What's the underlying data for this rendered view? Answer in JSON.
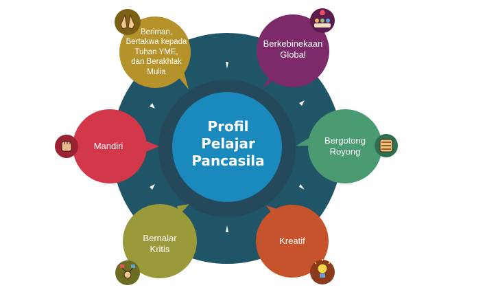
{
  "center": {
    "lines": [
      "Profil",
      "Pelajar",
      "Pancasila"
    ]
  },
  "elements": [
    {
      "id": "beriman",
      "lines": [
        "Beriman,",
        "Bertakwa kepada",
        "Tuhan YME,",
        "dan Berakhlak",
        "Mulia"
      ],
      "color": "#b6922a",
      "icon": "praying-hands-icon"
    },
    {
      "id": "berkebinekaan",
      "lines": [
        "Berkebinekaan",
        "Global"
      ],
      "color": "#7d2a6b",
      "icon": "diverse-people-icon"
    },
    {
      "id": "bergotong-royong",
      "lines": [
        "Bergotong",
        "Royong"
      ],
      "color": "#4a9a72",
      "icon": "joined-hands-icon"
    },
    {
      "id": "kreatif",
      "lines": [
        "Kreatif"
      ],
      "color": "#c6532b",
      "icon": "lightbulb-idea-icon"
    },
    {
      "id": "bernalar-kritis",
      "lines": [
        "Bernalar",
        "Kritis"
      ],
      "color": "#9a9a3a",
      "icon": "critical-thinking-icon"
    },
    {
      "id": "mandiri",
      "lines": [
        "Mandiri"
      ],
      "color": "#d2384a",
      "icon": "raised-fist-icon"
    }
  ],
  "colors": {
    "outer_ring": "#1f5566",
    "inner_ring": "#24495a",
    "center": "#1a89bd"
  }
}
